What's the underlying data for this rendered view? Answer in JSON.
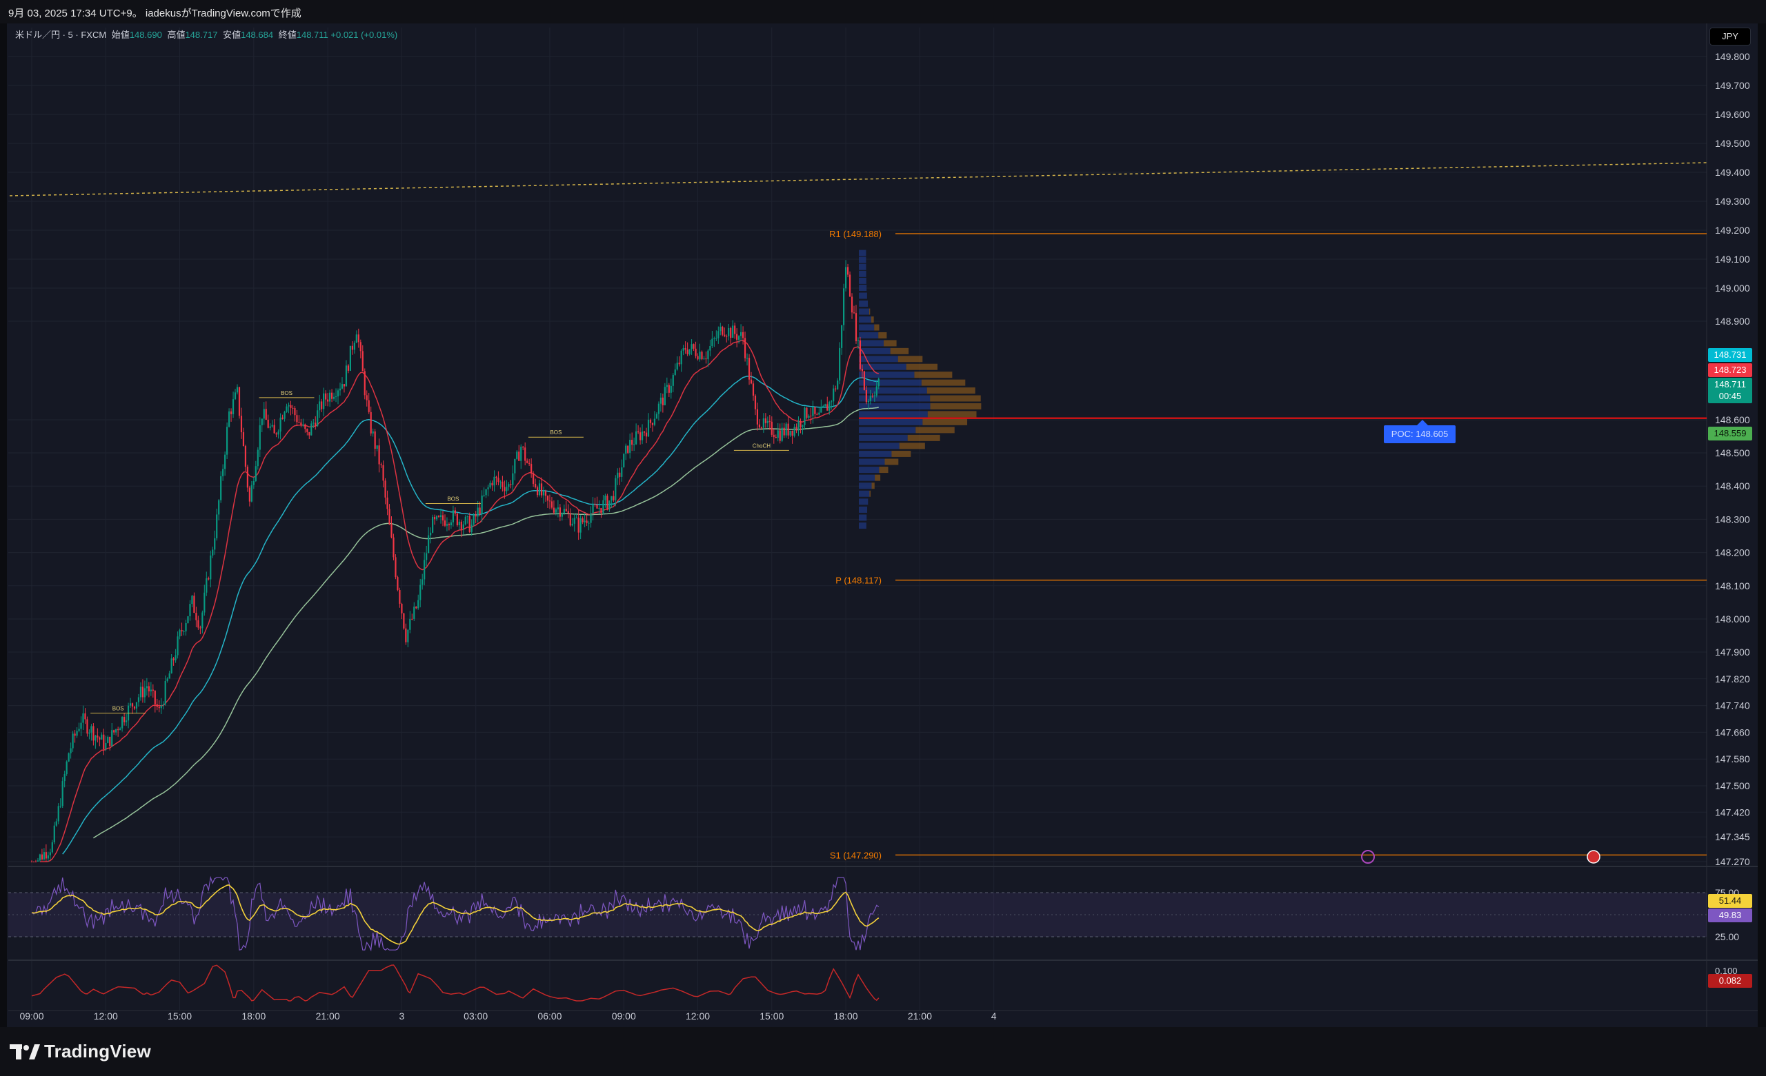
{
  "topbar": {
    "caption": "9月 03, 2025 17:34 UTC+9。 iadekusがTradingView.comで作成"
  },
  "symbol": {
    "name": "米ドル／円 · 5 · FXCM",
    "open_label": "始値",
    "open": "148.690",
    "high_label": "高値",
    "high": "148.717",
    "low_label": "安値",
    "low": "148.684",
    "close_label": "終値",
    "close": "148.711",
    "change": "+0.021 (+0.01%)"
  },
  "currency": "JPY",
  "price_axis": {
    "ticks": [
      {
        "label": "149.800",
        "v": 149.8
      },
      {
        "label": "149.700",
        "v": 149.7
      },
      {
        "label": "149.600",
        "v": 149.6
      },
      {
        "label": "149.500",
        "v": 149.5
      },
      {
        "label": "149.400",
        "v": 149.4
      },
      {
        "label": "149.300",
        "v": 149.3
      },
      {
        "label": "149.200",
        "v": 149.2
      },
      {
        "label": "149.100",
        "v": 149.1
      },
      {
        "label": "149.000",
        "v": 149.0
      },
      {
        "label": "148.900",
        "v": 148.9
      },
      {
        "label": "148.600",
        "v": 148.6
      },
      {
        "label": "148.500",
        "v": 148.5
      },
      {
        "label": "148.400",
        "v": 148.4
      },
      {
        "label": "148.300",
        "v": 148.3
      },
      {
        "label": "148.200",
        "v": 148.2
      },
      {
        "label": "148.100",
        "v": 148.1
      },
      {
        "label": "148.000",
        "v": 148.0
      },
      {
        "label": "147.900",
        "v": 147.9
      },
      {
        "label": "147.820",
        "v": 147.82
      },
      {
        "label": "147.740",
        "v": 147.74
      },
      {
        "label": "147.660",
        "v": 147.66
      },
      {
        "label": "147.580",
        "v": 147.58
      },
      {
        "label": "147.500",
        "v": 147.5
      },
      {
        "label": "147.420",
        "v": 147.42
      },
      {
        "label": "147.345",
        "v": 147.345
      },
      {
        "label": "147.270",
        "v": 147.27
      }
    ],
    "tags": {
      "ema_cyan": {
        "label": "148.731",
        "color": "#00bcd4"
      },
      "ema_red": {
        "label": "148.723",
        "color": "#f23645"
      },
      "last_price": {
        "label": "148.711",
        "countdown": "00:45",
        "color": "#089981"
      },
      "ema_green": {
        "label": "148.559",
        "color": "#4caf50"
      }
    }
  },
  "time_axis": {
    "labels": [
      {
        "label": "09:00",
        "i": 0
      },
      {
        "label": "12:00",
        "i": 36
      },
      {
        "label": "15:00",
        "i": 72
      },
      {
        "label": "18:00",
        "i": 108
      },
      {
        "label": "21:00",
        "i": 144
      },
      {
        "label": "3",
        "i": 180
      },
      {
        "label": "03:00",
        "i": 216
      },
      {
        "label": "06:00",
        "i": 252
      },
      {
        "label": "09:00",
        "i": 288
      },
      {
        "label": "12:00",
        "i": 324
      },
      {
        "label": "15:00",
        "i": 360
      },
      {
        "label": "18:00",
        "i": 396
      },
      {
        "label": "21:00",
        "i": 432
      },
      {
        "label": "4",
        "i": 468
      }
    ]
  },
  "pivots": [
    {
      "label": "R1 (149.188)",
      "v": 149.188
    },
    {
      "label": "P (148.117)",
      "v": 148.117
    },
    {
      "label": "S1 (147.290)",
      "v": 147.29
    }
  ],
  "poc": {
    "label": "POC: 148.605",
    "v": 148.605
  },
  "structure_labels": [
    {
      "label": "BOS",
      "i": 42,
      "v": 147.73
    },
    {
      "label": "BOS",
      "i": 124,
      "v": 148.68
    },
    {
      "label": "BOS",
      "i": 205,
      "v": 148.36
    },
    {
      "label": "BOS",
      "i": 255,
      "v": 148.56
    },
    {
      "label": "ChoCH",
      "i": 355,
      "v": 148.52
    }
  ],
  "rsi_pane": {
    "levels": [
      {
        "label": "75.00",
        "v": 75
      },
      {
        "label": "25.00",
        "v": 25
      }
    ],
    "tags": {
      "ma": {
        "label": "51.44",
        "color": "#f5d23a"
      },
      "rsi": {
        "label": "49.83",
        "color": "#7e57c2"
      }
    }
  },
  "lower_pane": {
    "tag": {
      "label": "0.082",
      "color": "#b71c1c"
    },
    "top_label": "0.100"
  },
  "brand": "TradingView",
  "colors": {
    "up": "#089981",
    "down": "#f23645",
    "background": "#151824",
    "grid": "#1f2330",
    "ema_fast": "#f23645",
    "ema_mid": "#26c6da",
    "ema_slow": "#a5d6a7",
    "pivot": "#f57c00",
    "poc_line": "#ff1111",
    "vp_blue": "#1e3a8a",
    "vp_orange": "#8d5a1c",
    "rsi": "#7e57c2",
    "rsi_ma": "#f5d23a"
  }
}
